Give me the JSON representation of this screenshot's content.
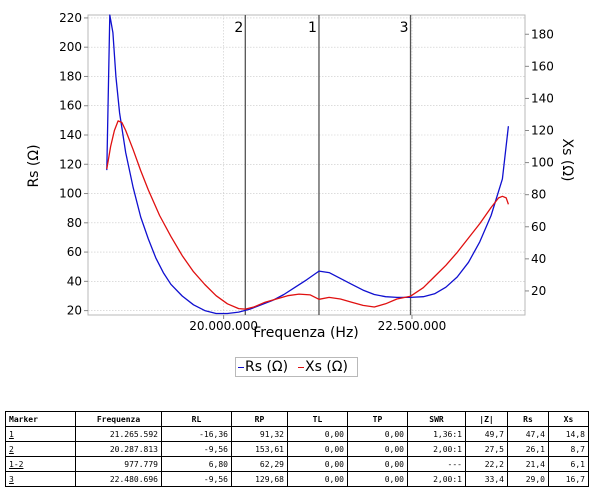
{
  "chart_data": {
    "type": "line",
    "xlabel": "Frequenza (Hz)",
    "ylabel_left": "Rs (Ω)",
    "ylabel_right": "Xs (Ω)",
    "x_range": [
      18200000,
      24000000
    ],
    "x_ticks": [
      20000000,
      22500000
    ],
    "x_tick_labels": [
      "20.000.000",
      "22.500.000"
    ],
    "y_left_range": [
      17,
      222
    ],
    "y_left_ticks": [
      20,
      40,
      60,
      80,
      100,
      120,
      140,
      160,
      180,
      200,
      220
    ],
    "y_right_range": [
      5,
      192
    ],
    "y_right_ticks": [
      20,
      40,
      60,
      80,
      100,
      120,
      140,
      160,
      180
    ],
    "grid": true,
    "legend_placement": "bottom-center",
    "markers": [
      {
        "label": "2",
        "x": 20287813
      },
      {
        "label": "1",
        "x": 21265592
      },
      {
        "label": "3",
        "x": 22480696
      }
    ],
    "series": [
      {
        "name": "Rs (Ω)",
        "axis": "left",
        "color": "#1010d0",
        "x": [
          18450000,
          18490000,
          18530000,
          18570000,
          18620000,
          18700000,
          18800000,
          18900000,
          19000000,
          19100000,
          19200000,
          19300000,
          19450000,
          19600000,
          19750000,
          19900000,
          20050000,
          20200000,
          20350000,
          20500000,
          20650000,
          20800000,
          20950000,
          21100000,
          21265592,
          21400000,
          21550000,
          21700000,
          21850000,
          22000000,
          22150000,
          22300000,
          22480696,
          22650000,
          22800000,
          22950000,
          23100000,
          23250000,
          23400000,
          23550000,
          23700000,
          23780000
        ],
        "values": [
          116,
          224,
          210,
          180,
          155,
          128,
          104,
          84,
          69,
          56,
          46,
          38,
          30,
          24,
          20,
          18,
          18,
          19,
          21,
          24,
          27,
          31,
          36,
          41,
          47,
          46,
          42,
          38,
          34,
          31,
          29.5,
          29,
          29,
          29.5,
          31.5,
          36,
          43,
          53,
          67,
          85,
          110,
          146
        ]
      },
      {
        "name": "Xs (Ω)",
        "axis": "right",
        "color": "#e01010",
        "x": [
          18450000,
          18500000,
          18550000,
          18600000,
          18650000,
          18700000,
          18800000,
          18900000,
          19000000,
          19150000,
          19300000,
          19450000,
          19600000,
          19750000,
          19900000,
          20050000,
          20200000,
          20287813,
          20400000,
          20550000,
          20700000,
          20850000,
          21000000,
          21150000,
          21265592,
          21400000,
          21550000,
          21700000,
          21850000,
          22000000,
          22150000,
          22300000,
          22480696,
          22650000,
          22800000,
          22950000,
          23100000,
          23250000,
          23400000,
          23550000,
          23650000,
          23700000,
          23750000,
          23780000
        ],
        "values": [
          96,
          110,
          120,
          126,
          125,
          120,
          108,
          95,
          83,
          67,
          54,
          42,
          32,
          24,
          17,
          12,
          9,
          8.7,
          10,
          13,
          15,
          17,
          18,
          17.5,
          14.8,
          16,
          15,
          13,
          11,
          10,
          12,
          15,
          16.7,
          22,
          29,
          36,
          44,
          53,
          62,
          72,
          78,
          79,
          78,
          74
        ]
      }
    ]
  },
  "table": {
    "headers": [
      "Marker",
      "Frequenza",
      "RL",
      "RP",
      "TL",
      "TP",
      "SWR",
      "|Z|",
      "Rs",
      "Xs"
    ],
    "rows": [
      [
        "1",
        "21.265.592",
        "-16,36",
        "91,32",
        "0,00",
        "0,00",
        "1,36:1",
        "49,7",
        "47,4",
        "14,8"
      ],
      [
        "2",
        "20.287.813",
        "-9,56",
        "153,61",
        "0,00",
        "0,00",
        "2,00:1",
        "27,5",
        "26,1",
        "8,7"
      ],
      [
        "1-2",
        "977.779",
        "6,80",
        "62,29",
        "0,00",
        "0,00",
        "---",
        "22,2",
        "21,4",
        "6,1"
      ],
      [
        "3",
        "22.480.696",
        "-9,56",
        "129,68",
        "0,00",
        "0,00",
        "2,00:1",
        "33,4",
        "29,0",
        "16,7"
      ]
    ]
  }
}
